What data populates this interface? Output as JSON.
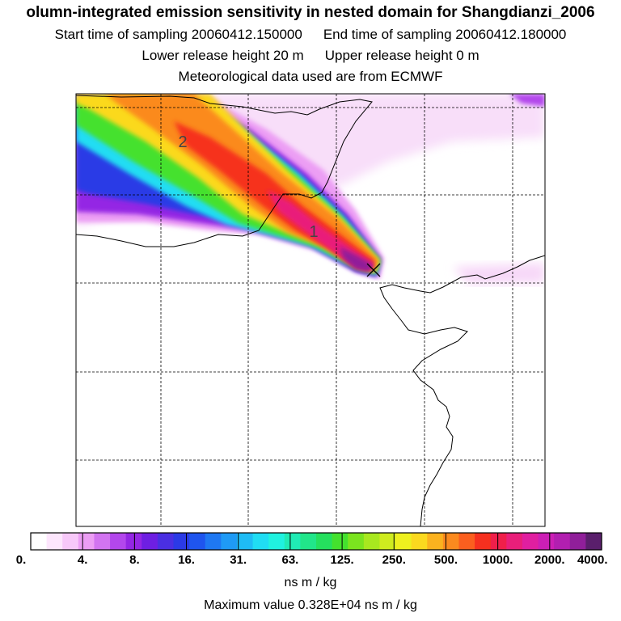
{
  "header": {
    "title": "olumn-integrated emission sensitivity in nested domain for Shangdianzi_2006",
    "start_label": "Start time of sampling 20060412.150000",
    "end_label": "End time of sampling 20060412.180000",
    "lower_label": "Lower release height   20 m",
    "upper_label": "Upper release height    0 m",
    "met_label": "Meteorological data used are from ECMWF"
  },
  "map": {
    "markers": [
      {
        "label": "2"
      },
      {
        "label": "1"
      }
    ],
    "receptor_symbol": "×"
  },
  "legend": {
    "ticks": [
      "0.",
      "4.",
      "8.",
      "16.",
      "31.",
      "63.",
      "125.",
      "250.",
      "500.",
      "1000.",
      "2000.",
      "4000."
    ],
    "units": "ns m / kg",
    "colors": [
      "#ffffff",
      "#fde6fd",
      "#f7c8f9",
      "#ec9ef4",
      "#d274f0",
      "#b347ec",
      "#9426e4",
      "#6e1fe2",
      "#4a2fe2",
      "#2b3ae6",
      "#1f55ee",
      "#1f78f2",
      "#1f9af5",
      "#1fbcf5",
      "#20ddf3",
      "#20f2e0",
      "#20ebb5",
      "#21e68a",
      "#25e05e",
      "#44e12e",
      "#7be41f",
      "#a8e81f",
      "#cfec1f",
      "#eef01f",
      "#fbd91f",
      "#fbb21f",
      "#fb8a1f",
      "#fb5f1f",
      "#f6301f",
      "#f01f4a",
      "#e91f7a",
      "#e01fa0",
      "#cc1fb5",
      "#b21fb0",
      "#901f9a",
      "#5a1f6c"
    ]
  },
  "footer": {
    "max_value": "Maximum value  0.328E+04 ns m / kg"
  }
}
